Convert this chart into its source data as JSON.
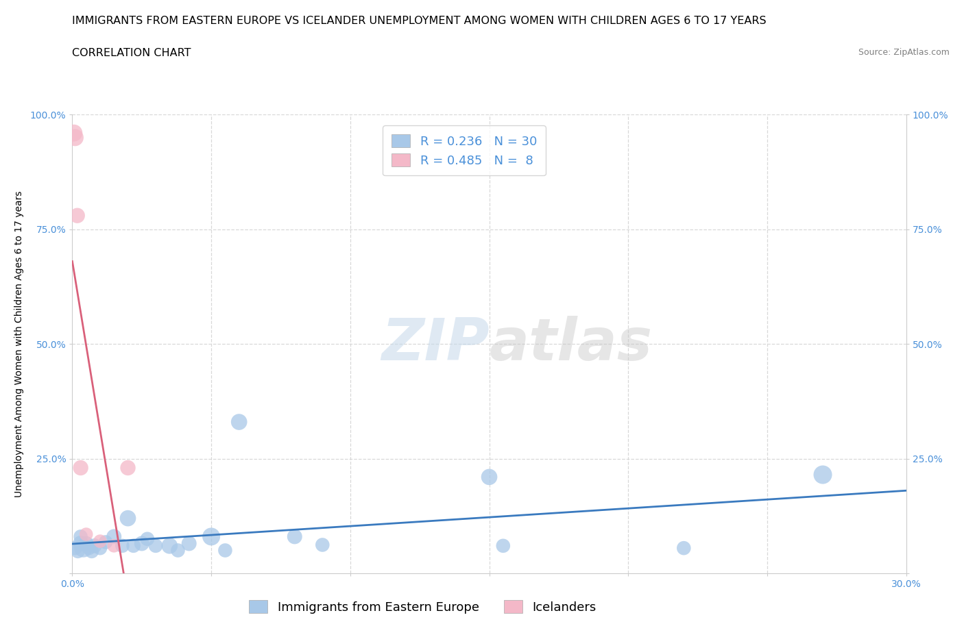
{
  "title": "IMMIGRANTS FROM EASTERN EUROPE VS ICELANDER UNEMPLOYMENT AMONG WOMEN WITH CHILDREN AGES 6 TO 17 YEARS",
  "subtitle": "CORRELATION CHART",
  "source": "Source: ZipAtlas.com",
  "ylabel": "Unemployment Among Women with Children Ages 6 to 17 years",
  "legend_label_1": "Immigrants from Eastern Europe",
  "legend_label_2": "Icelanders",
  "R1": 0.236,
  "N1": 30,
  "R2": 0.485,
  "N2": 8,
  "color1": "#a8c8e8",
  "color2": "#f4b8c8",
  "line_color1": "#3a7abf",
  "line_color2": "#d9607a",
  "tick_color": "#4a90d9",
  "xlim": [
    0.0,
    0.3
  ],
  "ylim": [
    0.0,
    1.0
  ],
  "xticks": [
    0.0,
    0.05,
    0.1,
    0.15,
    0.2,
    0.25,
    0.3
  ],
  "yticks": [
    0.0,
    0.25,
    0.5,
    0.75,
    1.0
  ],
  "blue_x": [
    0.001,
    0.002,
    0.003,
    0.003,
    0.004,
    0.005,
    0.006,
    0.007,
    0.008,
    0.01,
    0.012,
    0.015,
    0.018,
    0.02,
    0.022,
    0.025,
    0.027,
    0.03,
    0.035,
    0.038,
    0.042,
    0.05,
    0.055,
    0.06,
    0.08,
    0.09,
    0.15,
    0.155,
    0.22,
    0.27
  ],
  "blue_y": [
    0.055,
    0.048,
    0.065,
    0.08,
    0.055,
    0.065,
    0.055,
    0.048,
    0.06,
    0.055,
    0.068,
    0.08,
    0.06,
    0.12,
    0.06,
    0.065,
    0.075,
    0.06,
    0.06,
    0.05,
    0.065,
    0.08,
    0.05,
    0.33,
    0.08,
    0.062,
    0.21,
    0.06,
    0.055,
    0.215
  ],
  "blue_sizes": [
    220,
    220,
    270,
    220,
    380,
    240,
    220,
    220,
    240,
    220,
    220,
    250,
    220,
    290,
    220,
    250,
    220,
    220,
    290,
    220,
    250,
    350,
    220,
    290,
    250,
    220,
    290,
    220,
    220,
    380
  ],
  "pink_x": [
    0.0006,
    0.001,
    0.0018,
    0.003,
    0.005,
    0.01,
    0.015,
    0.02
  ],
  "pink_y": [
    0.96,
    0.95,
    0.78,
    0.23,
    0.085,
    0.07,
    0.06,
    0.23
  ],
  "pink_sizes": [
    320,
    320,
    260,
    260,
    200,
    200,
    200,
    260
  ],
  "watermark_zip": "ZIP",
  "watermark_atlas": "atlas",
  "background_color": "#ffffff",
  "grid_color": "#d8d8d8",
  "title_fontsize": 11.5,
  "subtitle_fontsize": 11.5,
  "source_fontsize": 9,
  "axis_label_fontsize": 10,
  "tick_fontsize": 10,
  "legend_fontsize": 13
}
